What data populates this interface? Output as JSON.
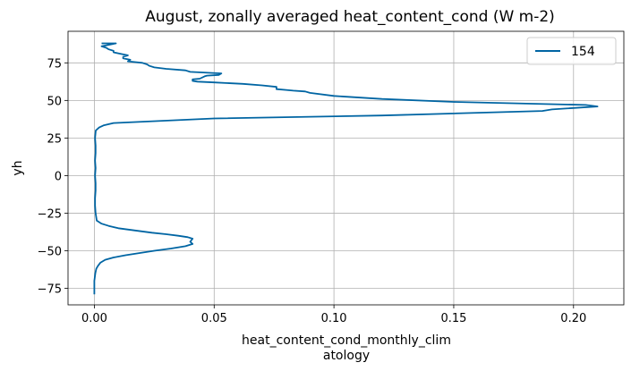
{
  "chart_data": {
    "type": "line",
    "title": "August, zonally averaged heat_content_cond (W m-2)",
    "xlabel_line1": "heat_content_cond_monthly_clim",
    "xlabel_line2": "atology",
    "ylabel": "yh",
    "xlim": [
      -0.011,
      0.221
    ],
    "ylim": [
      -86,
      96
    ],
    "xticks": [
      0.0,
      0.05,
      0.1,
      0.15,
      0.2
    ],
    "xtick_labels": [
      "0.00",
      "0.05",
      "0.10",
      "0.15",
      "0.20"
    ],
    "yticks": [
      -75,
      -50,
      -25,
      0,
      25,
      50,
      75
    ],
    "ytick_labels": [
      "−75",
      "−50",
      "−25",
      "0",
      "25",
      "50",
      "75"
    ],
    "grid": true,
    "legend_position": "top-right",
    "series": [
      {
        "name": "154",
        "color": "#0065a3",
        "x": [
          0.0,
          0.0,
          0.0004,
          0.0008,
          0.0015,
          0.0025,
          0.0045,
          0.008,
          0.013,
          0.019,
          0.025,
          0.032,
          0.038,
          0.041,
          0.04,
          0.041,
          0.039,
          0.035,
          0.03,
          0.024,
          0.017,
          0.01,
          0.006,
          0.003,
          0.001,
          0.0005,
          0.0003,
          0.0003,
          0.0005,
          0.0005,
          0.0003,
          0.0005,
          0.0003,
          0.0005,
          0.0005,
          0.0003,
          0.0006,
          0.002,
          0.004,
          0.008,
          0.05,
          0.12,
          0.187,
          0.191,
          0.21,
          0.205,
          0.15,
          0.12,
          0.1,
          0.09,
          0.088,
          0.083,
          0.08,
          0.076,
          0.076,
          0.07,
          0.062,
          0.05,
          0.043,
          0.041,
          0.041,
          0.044,
          0.046,
          0.047,
          0.052,
          0.053,
          0.04,
          0.038,
          0.03,
          0.025,
          0.023,
          0.022,
          0.02,
          0.014,
          0.015,
          0.012,
          0.012,
          0.014,
          0.011,
          0.008,
          0.008,
          0.006,
          0.005,
          0.003,
          0.009,
          0.003
        ],
        "y": [
          -79,
          -70,
          -65,
          -62,
          -60,
          -58,
          -56,
          -54.5,
          -53,
          -51.5,
          -50,
          -48.5,
          -47,
          -45.5,
          -44,
          -42,
          -41,
          -40,
          -39,
          -38,
          -36.5,
          -35,
          -33.5,
          -32,
          -30,
          -25,
          -20,
          -15,
          -10,
          -5,
          0,
          5,
          10,
          15,
          20,
          25,
          30,
          32,
          33.5,
          35,
          38,
          40,
          43,
          44,
          46,
          47,
          49,
          51,
          53,
          55,
          56,
          56.5,
          57,
          57.5,
          59,
          60,
          61,
          62,
          62.5,
          63,
          64,
          64.5,
          66,
          66.5,
          67,
          68,
          69,
          70,
          71,
          72,
          73,
          74,
          75,
          76,
          77,
          78,
          79,
          80,
          81,
          82,
          83,
          84,
          85,
          86,
          88,
          88
        ]
      }
    ]
  }
}
